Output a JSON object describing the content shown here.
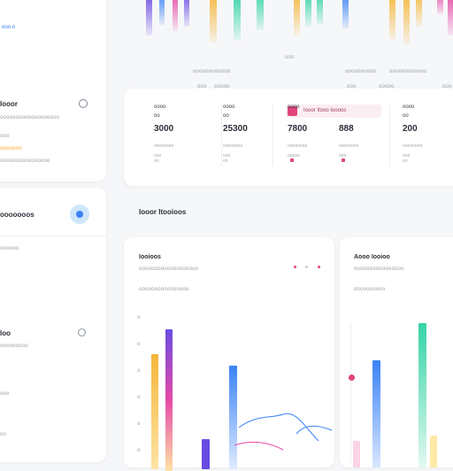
{
  "left_panel": {
    "top_link": "ooo o",
    "label_1": "Iooor",
    "desc_1": "ooooooooooooooooooo",
    "row_a": "ooo",
    "row_b": "ooooooo",
    "row_c": "oooooooooooooooo",
    "label_2": "ooooooos",
    "desc_2": "oooooo",
    "label_3": "Ioo",
    "desc_3": "ooooooooo",
    "row_d": "ooo",
    "row_e": "oo"
  },
  "top_chart": {
    "axis_labels": [
      "oooooooooooo",
      "ooo",
      "oooooooooo",
      "oooooooooooo"
    ],
    "axis_sub": [
      "ooo",
      "ooooo",
      "ooo",
      "ooooo",
      "ooo"
    ]
  },
  "stats": {
    "items": [
      {
        "label": "oooo",
        "unit": "oo",
        "value": "3000",
        "sub": "oooooooo",
        "foot": "ooo oo",
        "dot": "#ffffff"
      },
      {
        "label": "oooo",
        "unit": "oo",
        "value": "25300",
        "sub": "oooooooo",
        "foot": "ooo oo",
        "dot": "#ffffff"
      },
      {
        "label": "oooo",
        "unit": "",
        "value": "7800",
        "sub": "oooooooo",
        "foot": "ooooo",
        "dot": "#e0457b"
      },
      {
        "label": "",
        "unit": "",
        "value": "888",
        "sub": "oooooooo",
        "foot": "ooo",
        "dot": "#e0457b"
      },
      {
        "label": "oooo",
        "unit": "oo",
        "value": "200",
        "sub": "oooooooo",
        "foot": "ooo oo",
        "dot": "#ffffff"
      }
    ],
    "tag_label": "Iooor Itooo Ioooos"
  },
  "section": {
    "title": "Iooor Itooioos"
  },
  "activity": {
    "title": "Iooioos",
    "sub": "ooooooooooooooooooo",
    "legend": "oooooooooooooooo",
    "y_ticks": [
      "o",
      "o",
      "o",
      "o",
      "o",
      "o"
    ]
  },
  "action": {
    "title": "Aooo Iooioo",
    "sub": "oooooooooooooooo",
    "legend": "oooooooooo"
  },
  "colors": {
    "accent_pink": "#e0457b",
    "accent_blue": "#3b82f6",
    "accent_teal": "#34d3a5",
    "accent_orange": "#f5b73a",
    "accent_purple": "#6a4be3",
    "accent_magenta": "#e64aa6"
  },
  "icons": {
    "left_top_icon": "chat-icon",
    "left_mid_icon": "user-icon",
    "left_bottom_icon": "clock-icon",
    "stat_tag_icon": "tag-icon"
  }
}
